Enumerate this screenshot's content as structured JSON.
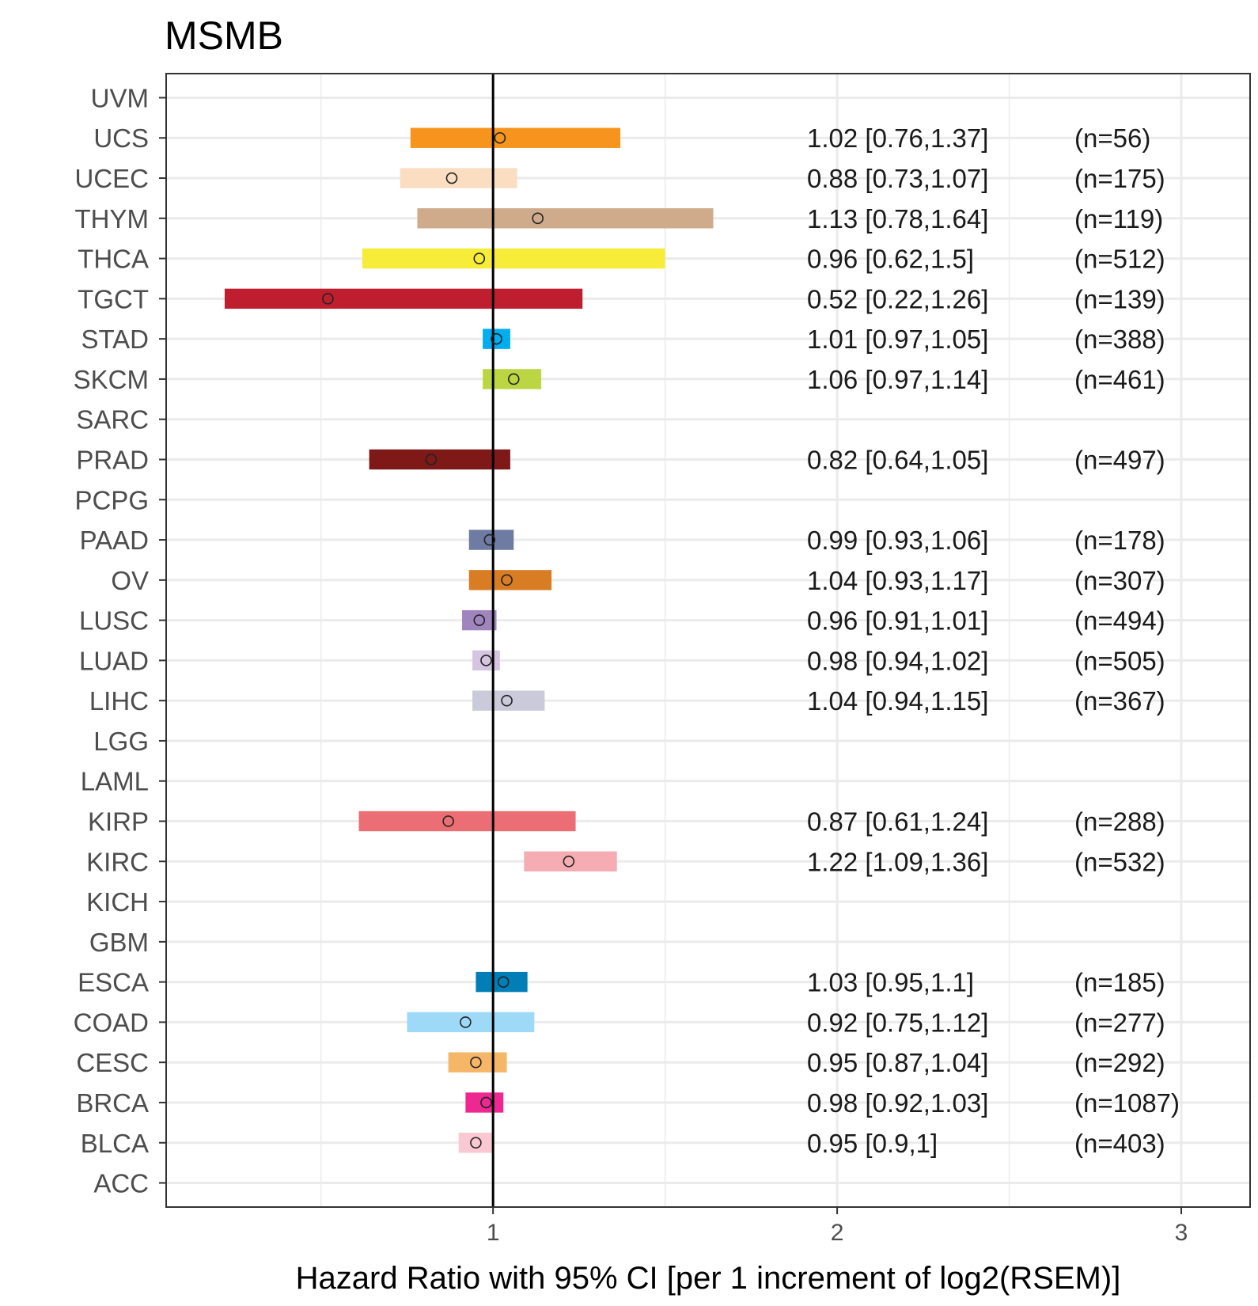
{
  "chart_data": {
    "type": "forest",
    "title": "MSMB",
    "xlabel": "Hazard Ratio with 95% CI [per 1 increment of log2(RSEM)]",
    "ylabel": "",
    "xlim": [
      0.05,
      3.2
    ],
    "xticks": [
      1,
      2,
      3
    ],
    "reference_line": 1,
    "grid": true,
    "categories": [
      "UVM",
      "UCS",
      "UCEC",
      "THYM",
      "THCA",
      "TGCT",
      "STAD",
      "SKCM",
      "SARC",
      "PRAD",
      "PCPG",
      "PAAD",
      "OV",
      "LUSC",
      "LUAD",
      "LIHC",
      "LGG",
      "LAML",
      "KIRP",
      "KIRC",
      "KICH",
      "GBM",
      "ESCA",
      "COAD",
      "CESC",
      "BRCA",
      "BLCA",
      "ACC"
    ],
    "rows": [
      {
        "cancer": "UVM"
      },
      {
        "cancer": "UCS",
        "hr": 1.02,
        "lo": 0.76,
        "hi": 1.37,
        "label": "1.02 [0.76,1.37]",
        "n": "(n=56)",
        "color": "#F7941D"
      },
      {
        "cancer": "UCEC",
        "hr": 0.88,
        "lo": 0.73,
        "hi": 1.07,
        "label": "0.88 [0.73,1.07]",
        "n": "(n=175)",
        "color": "#FBDDC2"
      },
      {
        "cancer": "THYM",
        "hr": 1.13,
        "lo": 0.78,
        "hi": 1.64,
        "label": "1.13 [0.78,1.64]",
        "n": "(n=119)",
        "color": "#CFAB8C"
      },
      {
        "cancer": "THCA",
        "hr": 0.96,
        "lo": 0.62,
        "hi": 1.5,
        "label": "0.96 [0.62,1.5]",
        "n": "(n=512)",
        "color": "#F7EC37"
      },
      {
        "cancer": "TGCT",
        "hr": 0.52,
        "lo": 0.22,
        "hi": 1.26,
        "label": "0.52 [0.22,1.26]",
        "n": "(n=139)",
        "color": "#BE1E2D"
      },
      {
        "cancer": "STAD",
        "hr": 1.01,
        "lo": 0.97,
        "hi": 1.05,
        "label": "1.01 [0.97,1.05]",
        "n": "(n=388)",
        "color": "#00AEEF"
      },
      {
        "cancer": "SKCM",
        "hr": 1.06,
        "lo": 0.97,
        "hi": 1.14,
        "label": "1.06 [0.97,1.14]",
        "n": "(n=461)",
        "color": "#BBD642"
      },
      {
        "cancer": "SARC"
      },
      {
        "cancer": "PRAD",
        "hr": 0.82,
        "lo": 0.64,
        "hi": 1.05,
        "label": "0.82 [0.64,1.05]",
        "n": "(n=497)",
        "color": "#7E1918"
      },
      {
        "cancer": "PCPG"
      },
      {
        "cancer": "PAAD",
        "hr": 0.99,
        "lo": 0.93,
        "hi": 1.06,
        "label": "0.99 [0.93,1.06]",
        "n": "(n=178)",
        "color": "#6E7BA2"
      },
      {
        "cancer": "OV",
        "hr": 1.04,
        "lo": 0.93,
        "hi": 1.17,
        "label": "1.04 [0.93,1.17]",
        "n": "(n=307)",
        "color": "#D97D25"
      },
      {
        "cancer": "LUSC",
        "hr": 0.96,
        "lo": 0.91,
        "hi": 1.01,
        "label": "0.96 [0.91,1.01]",
        "n": "(n=494)",
        "color": "#A084BD"
      },
      {
        "cancer": "LUAD",
        "hr": 0.98,
        "lo": 0.94,
        "hi": 1.02,
        "label": "0.98 [0.94,1.02]",
        "n": "(n=505)",
        "color": "#D5C5E0"
      },
      {
        "cancer": "LIHC",
        "hr": 1.04,
        "lo": 0.94,
        "hi": 1.15,
        "label": "1.04 [0.94,1.15]",
        "n": "(n=367)",
        "color": "#CACADA"
      },
      {
        "cancer": "LGG"
      },
      {
        "cancer": "LAML"
      },
      {
        "cancer": "KIRP",
        "hr": 0.87,
        "lo": 0.61,
        "hi": 1.24,
        "label": "0.87 [0.61,1.24]",
        "n": "(n=288)",
        "color": "#EA6E73"
      },
      {
        "cancer": "KIRC",
        "hr": 1.22,
        "lo": 1.09,
        "hi": 1.36,
        "label": "1.22 [1.09,1.36]",
        "n": "(n=532)",
        "color": "#F5ADB3"
      },
      {
        "cancer": "KICH"
      },
      {
        "cancer": "GBM"
      },
      {
        "cancer": "ESCA",
        "hr": 1.03,
        "lo": 0.95,
        "hi": 1.1,
        "label": "1.03 [0.95,1.1]",
        "n": "(n=185)",
        "color": "#007EB5"
      },
      {
        "cancer": "COAD",
        "hr": 0.92,
        "lo": 0.75,
        "hi": 1.12,
        "label": "0.92 [0.75,1.12]",
        "n": "(n=277)",
        "color": "#9EDAF8"
      },
      {
        "cancer": "CESC",
        "hr": 0.95,
        "lo": 0.87,
        "hi": 1.04,
        "label": "0.95 [0.87,1.04]",
        "n": "(n=292)",
        "color": "#F6B667"
      },
      {
        "cancer": "BRCA",
        "hr": 0.98,
        "lo": 0.92,
        "hi": 1.03,
        "label": "0.98 [0.92,1.03]",
        "n": "(n=1087)",
        "color": "#ED2891"
      },
      {
        "cancer": "BLCA",
        "hr": 0.95,
        "lo": 0.9,
        "hi": 1.0,
        "label": "0.95 [0.9,1]",
        "n": "(n=403)",
        "color": "#FAC8D2"
      },
      {
        "cancer": "ACC"
      }
    ]
  }
}
